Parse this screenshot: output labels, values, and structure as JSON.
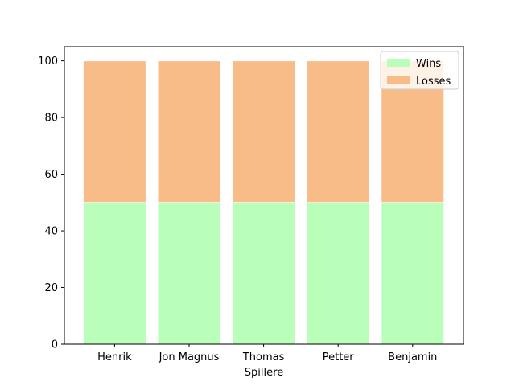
{
  "chart_data": {
    "type": "bar",
    "stacked": true,
    "categories": [
      "Henrik",
      "Jon Magnus",
      "Thomas",
      "Petter",
      "Benjamin"
    ],
    "series": [
      {
        "name": "Wins",
        "values": [
          50,
          50,
          50,
          50,
          50
        ],
        "color": "#b9ffb9"
      },
      {
        "name": "Losses",
        "values": [
          50,
          50,
          50,
          50,
          50
        ],
        "color": "#f8bc88"
      }
    ],
    "xlabel": "Spillere",
    "ylabel": "",
    "ylim": [
      0,
      105
    ],
    "yticks": [
      0,
      20,
      40,
      60,
      80,
      100
    ],
    "grid": false,
    "legend_position": "top-right",
    "bar_edge_color": "#ffffff"
  }
}
